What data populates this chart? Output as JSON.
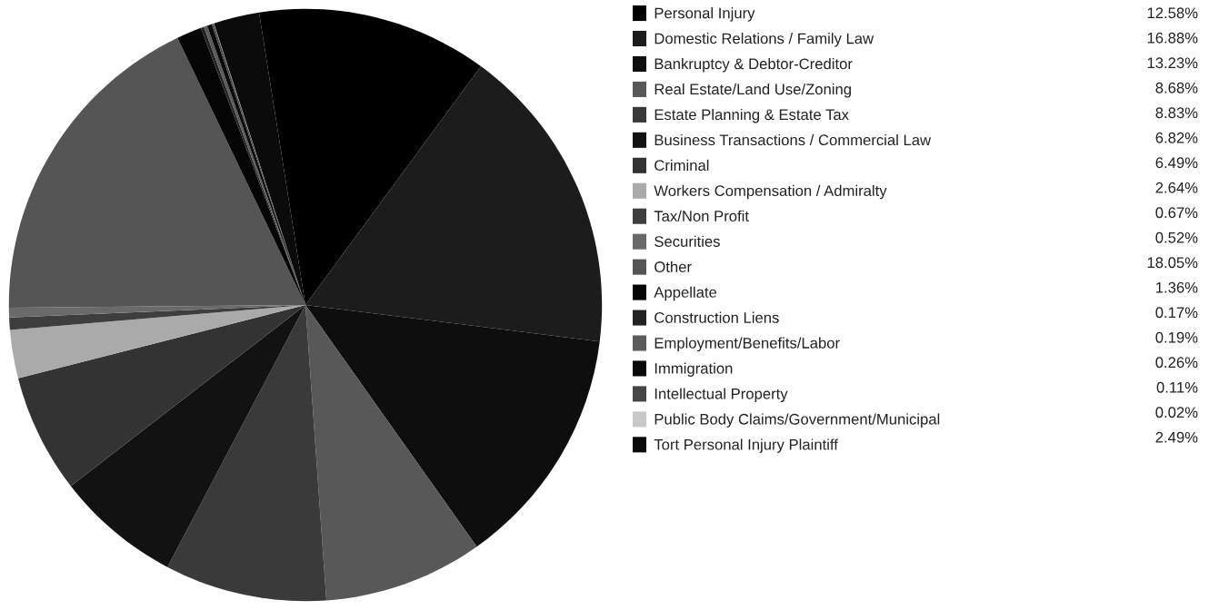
{
  "chart_data": {
    "type": "pie",
    "legend": "right",
    "data_labels": true,
    "categories": [
      "Personal Injury",
      "Domestic Relations / Family Law",
      "Bankruptcy & Debtor-Creditor",
      "Real Estate/Land Use/Zoning",
      "Estate Planning & Estate Tax",
      "Business Transactions / Commercial Law",
      "Criminal",
      "Workers Compensation / Admiralty",
      "Tax/Non Profit",
      "Securities",
      "Other",
      "Appellate",
      "Construction Liens",
      "Employment/Benefits/Labor",
      "Immigration",
      "Intellectual Property",
      "Public Body Claims/Government/Municipal",
      "Tort Personal Injury Plaintiff"
    ],
    "values": [
      12.58,
      16.88,
      13.23,
      8.68,
      8.83,
      6.82,
      6.49,
      2.64,
      0.67,
      0.52,
      18.05,
      1.36,
      0.17,
      0.19,
      0.26,
      0.11,
      0.02,
      2.49
    ],
    "value_labels": [
      "12.58%",
      "16.88%",
      "13.23%",
      "8.68%",
      "8.83%",
      "6.82%",
      "6.49%",
      "2.64%",
      "0.67%",
      "0.52%",
      "18.05%",
      "1.36%",
      "0.17%",
      "0.19%",
      "0.26%",
      "0.11%",
      "0.02%",
      "2.49%"
    ],
    "colors": [
      "#000000",
      "#1c1c1c",
      "#0e0e0e",
      "#585858",
      "#3a3a3a",
      "#121212",
      "#333333",
      "#aaaaaa",
      "#3e3e3e",
      "#6a6a6a",
      "#555555",
      "#050505",
      "#222222",
      "#5c5c5c",
      "#0a0a0a",
      "#464646",
      "#c8c8c8",
      "#0b0b0b"
    ]
  }
}
